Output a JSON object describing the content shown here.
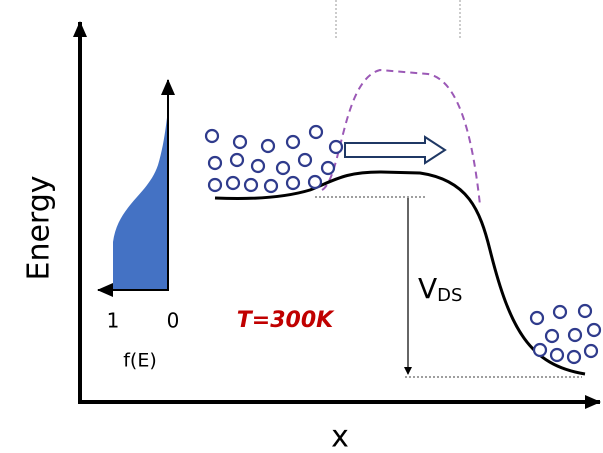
{
  "labels": {
    "y_axis": "Energy",
    "x_axis": "x",
    "fermi_axis": "f(E)",
    "fermi_tick_left": "1",
    "fermi_tick_right": "0",
    "temperature": "T=300K",
    "voltage": "V",
    "voltage_subscript": "DS"
  }
}
